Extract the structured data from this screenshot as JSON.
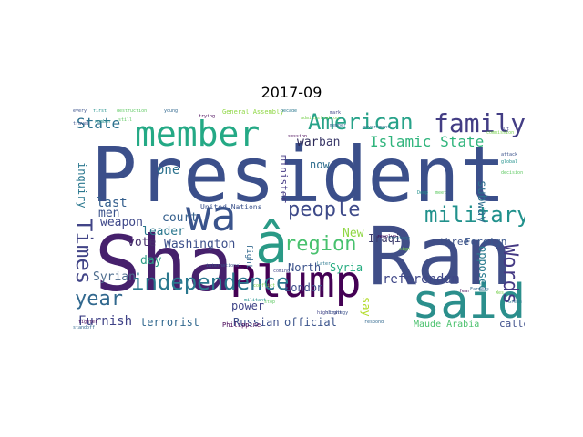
{
  "figure": {
    "title": "2017-09"
  },
  "word_cloud": {
    "words": [
      {
        "text": "President",
        "color": "#3b4f8a"
      },
      {
        "text": "Sha",
        "color": "#46206c"
      },
      {
        "text": "Ran",
        "color": "#404e87"
      },
      {
        "text": "Plump",
        "color": "#440154"
      },
      {
        "text": "wa",
        "color": "#3a548c"
      },
      {
        "text": "â",
        "color": "#2a9a86"
      },
      {
        "text": "said",
        "color": "#2b8f8c"
      },
      {
        "text": "member",
        "color": "#24a985"
      },
      {
        "text": "independence",
        "color": "#2a788e"
      },
      {
        "text": "American",
        "color": "#27a289"
      },
      {
        "text": "family",
        "color": "#433d84"
      },
      {
        "text": "military",
        "color": "#21918c"
      },
      {
        "text": "Islamic State",
        "color": "#2fb47c"
      },
      {
        "text": "people",
        "color": "#3e4a89"
      },
      {
        "text": "region",
        "color": "#48c16e"
      },
      {
        "text": "Times",
        "color": "#414487"
      },
      {
        "text": "year",
        "color": "#31688e"
      },
      {
        "text": "Words",
        "color": "#443983"
      },
      {
        "text": "State",
        "color": "#2d718e"
      },
      {
        "text": "Washington",
        "color": "#3c4f8a"
      },
      {
        "text": "Syrian",
        "color": "#4e6d8e"
      },
      {
        "text": "referendum",
        "color": "#3f4788"
      },
      {
        "text": "Furnish",
        "color": "#404387"
      },
      {
        "text": "war",
        "color": "#2c2a58"
      },
      {
        "text": "ban",
        "color": "#3c3a6a"
      },
      {
        "text": "last",
        "color": "#355f8d"
      },
      {
        "text": "one",
        "color": "#2c728e"
      },
      {
        "text": "men",
        "color": "#3b528b"
      },
      {
        "text": "vote",
        "color": "#46306b"
      },
      {
        "text": "weapon",
        "color": "#3f4889"
      },
      {
        "text": "court",
        "color": "#36608d"
      },
      {
        "text": "leader",
        "color": "#2a778e"
      },
      {
        "text": "day",
        "color": "#2b9c85"
      },
      {
        "text": "power",
        "color": "#404588"
      },
      {
        "text": "North",
        "color": "#3b528b"
      },
      {
        "text": "London",
        "color": "#3e4c8a"
      },
      {
        "text": "Syria",
        "color": "#26ad81"
      },
      {
        "text": "New",
        "color": "#8fd744"
      },
      {
        "text": "Iraqi",
        "color": "#3b3b6b"
      },
      {
        "text": "three",
        "color": "#3b4f86"
      },
      {
        "text": "Foreign",
        "color": "#39568c"
      },
      {
        "text": "now",
        "color": "#2b6b8c"
      },
      {
        "text": "subway",
        "color": "#2e6e8e"
      },
      {
        "text": "opposed",
        "color": "#297b8e"
      },
      {
        "text": "say",
        "color": "#b3dc2b"
      },
      {
        "text": "terrorist",
        "color": "#31688e"
      },
      {
        "text": "Russian",
        "color": "#3d4e8a"
      },
      {
        "text": "official",
        "color": "#3a538b"
      },
      {
        "text": "called",
        "color": "#3d4e8a"
      },
      {
        "text": "inquiry",
        "color": "#2a778e"
      },
      {
        "text": "minister",
        "color": "#443983"
      },
      {
        "text": "fight",
        "color": "#31688e"
      },
      {
        "text": "Maude Arabia",
        "color": "#4ac16d"
      },
      {
        "text": "United Nations",
        "color": "#3b528b"
      },
      {
        "text": "General Assembly",
        "color": "#8fd744"
      },
      {
        "text": "Philippine",
        "color": "#440154"
      }
    ],
    "small_words": [
      "every",
      "first",
      "destruction",
      "young",
      "trying",
      "decade",
      "administration",
      "mark",
      "travel",
      "number",
      "still",
      "member",
      "session",
      "government",
      "commission",
      "cut",
      "attack",
      "global",
      "decision",
      "Farmers",
      "fear",
      "Green",
      "Wes",
      "highlight",
      "international",
      "militant",
      "stop",
      "standoff",
      "fighter",
      "Later",
      "conflict",
      "coming",
      "strategy",
      "Deep",
      "meet",
      "respond",
      "resolve",
      "Strategy",
      "sign"
    ]
  }
}
